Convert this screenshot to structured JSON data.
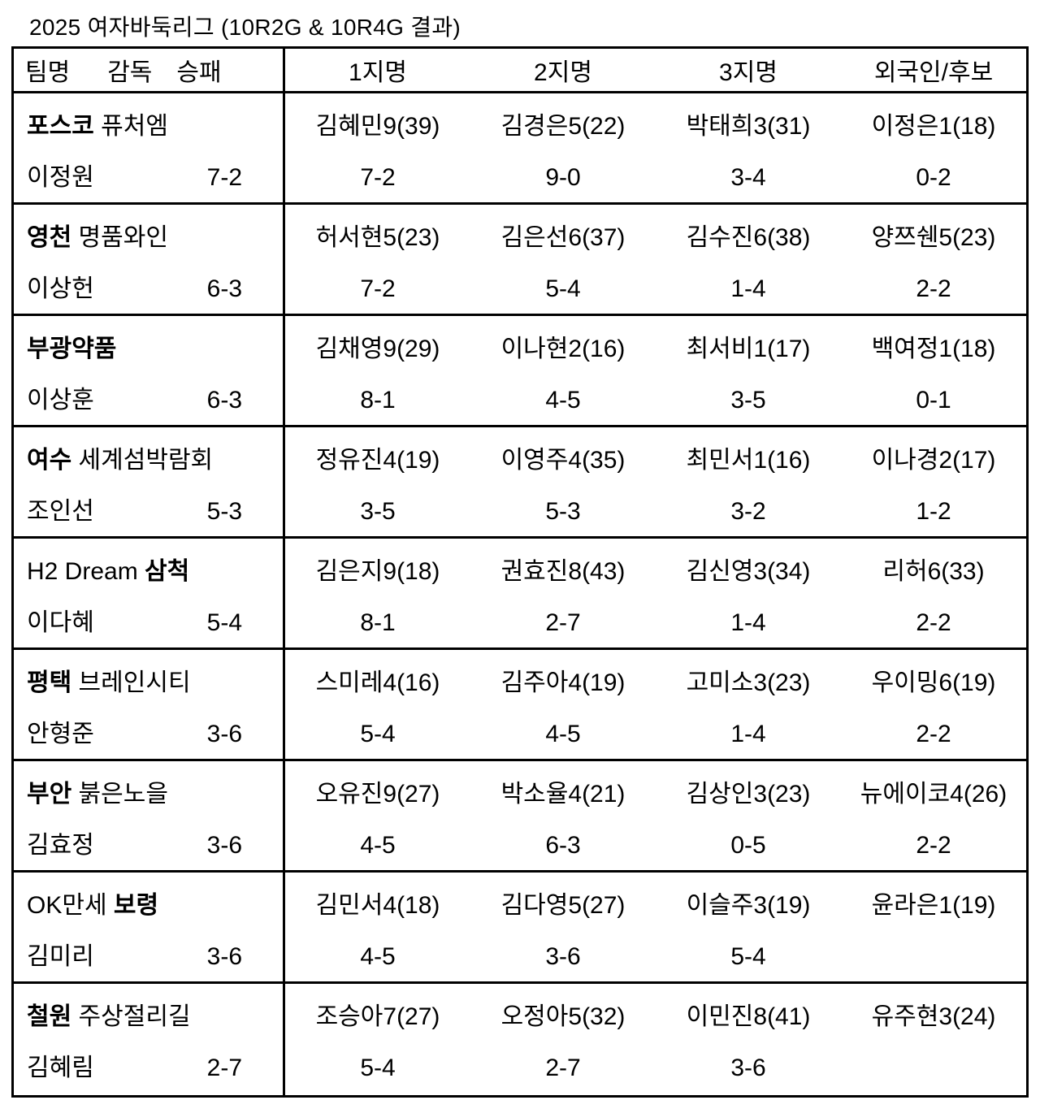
{
  "title": "2025 여자바둑리그 (10R2G & 10R4G 결과)",
  "table": {
    "header": {
      "team": "팀명",
      "coach": "감독",
      "result": "승패",
      "pick1": "1지명",
      "pick2": "2지명",
      "pick3": "3지명",
      "foreign": "외국인/후보"
    },
    "rows": [
      {
        "team_pre": "",
        "team_bold": "포스코",
        "team_post": " 퓨처엠",
        "coach": "이정원",
        "record": "7-2",
        "players": [
          {
            "name": "김혜민9(39)",
            "record": "7-2"
          },
          {
            "name": "김경은5(22)",
            "record": "9-0"
          },
          {
            "name": "박태희3(31)",
            "record": "3-4"
          },
          {
            "name": "이정은1(18)",
            "record": "0-2"
          }
        ]
      },
      {
        "team_pre": "",
        "team_bold": "영천",
        "team_post": " 명품와인",
        "coach": "이상헌",
        "record": "6-3",
        "players": [
          {
            "name": "허서현5(23)",
            "record": "7-2"
          },
          {
            "name": "김은선6(37)",
            "record": "5-4"
          },
          {
            "name": "김수진6(38)",
            "record": "1-4"
          },
          {
            "name": "양쯔쉔5(23)",
            "record": "2-2"
          }
        ]
      },
      {
        "team_pre": "",
        "team_bold": "부광약품",
        "team_post": "",
        "coach": "이상훈",
        "record": "6-3",
        "players": [
          {
            "name": "김채영9(29)",
            "record": "8-1"
          },
          {
            "name": "이나현2(16)",
            "record": "4-5"
          },
          {
            "name": "최서비1(17)",
            "record": "3-5"
          },
          {
            "name": "백여정1(18)",
            "record": "0-1"
          }
        ]
      },
      {
        "team_pre": "",
        "team_bold": "여수",
        "team_post": " 세계섬박람회",
        "coach": "조인선",
        "record": "5-3",
        "players": [
          {
            "name": "정유진4(19)",
            "record": "3-5"
          },
          {
            "name": "이영주4(35)",
            "record": "5-3"
          },
          {
            "name": "최민서1(16)",
            "record": "3-2"
          },
          {
            "name": "이나경2(17)",
            "record": "1-2"
          }
        ]
      },
      {
        "team_pre": "H2 Dream ",
        "team_bold": "삼척",
        "team_post": "",
        "coach": "이다혜",
        "record": "5-4",
        "players": [
          {
            "name": "김은지9(18)",
            "record": "8-1"
          },
          {
            "name": "권효진8(43)",
            "record": "2-7"
          },
          {
            "name": "김신영3(34)",
            "record": "1-4"
          },
          {
            "name": "리허6(33)",
            "record": "2-2"
          }
        ]
      },
      {
        "team_pre": "",
        "team_bold": "평택",
        "team_post": " 브레인시티",
        "coach": "안형준",
        "record": "3-6",
        "players": [
          {
            "name": "스미레4(16)",
            "record": "5-4"
          },
          {
            "name": "김주아4(19)",
            "record": "4-5"
          },
          {
            "name": "고미소3(23)",
            "record": "1-4"
          },
          {
            "name": "우이밍6(19)",
            "record": "2-2"
          }
        ]
      },
      {
        "team_pre": "",
        "team_bold": "부안",
        "team_post": " 붉은노을",
        "coach": "김효정",
        "record": "3-6",
        "players": [
          {
            "name": "오유진9(27)",
            "record": "4-5"
          },
          {
            "name": "박소율4(21)",
            "record": "6-3"
          },
          {
            "name": "김상인3(23)",
            "record": "0-5"
          },
          {
            "name": "뉴에이코4(26)",
            "record": "2-2"
          }
        ]
      },
      {
        "team_pre": "OK만세 ",
        "team_bold": "보령",
        "team_post": "",
        "coach": "김미리",
        "record": "3-6",
        "players": [
          {
            "name": "김민서4(18)",
            "record": "4-5"
          },
          {
            "name": "김다영5(27)",
            "record": "3-6"
          },
          {
            "name": "이슬주3(19)",
            "record": "5-4"
          },
          {
            "name": "윤라은1(19)",
            "record": ""
          }
        ]
      },
      {
        "team_pre": "",
        "team_bold": "철원",
        "team_post": " 주상절리길",
        "coach": "김혜림",
        "record": "2-7",
        "players": [
          {
            "name": "조승아7(27)",
            "record": "5-4"
          },
          {
            "name": "오정아5(32)",
            "record": "2-7"
          },
          {
            "name": "이민진8(41)",
            "record": "3-6"
          },
          {
            "name": "유주현3(24)",
            "record": ""
          }
        ]
      }
    ]
  }
}
